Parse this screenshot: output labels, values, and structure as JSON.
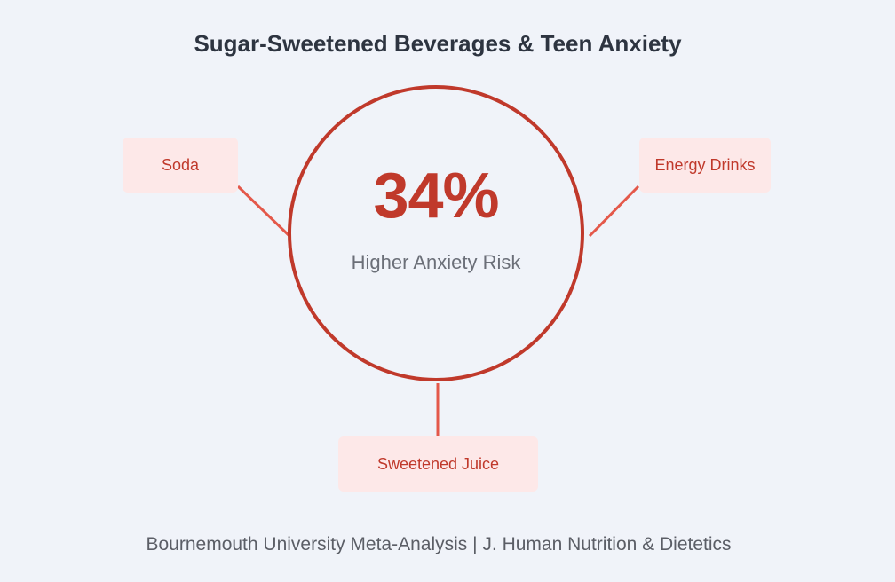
{
  "title": "Sugar-Sweetened Beverages & Teen Anxiety",
  "center": {
    "value": "34%",
    "label": "Higher Anxiety Risk"
  },
  "beverages": [
    {
      "label": "Soda"
    },
    {
      "label": "Energy Drinks"
    },
    {
      "label": "Sweetened Juice"
    }
  ],
  "footer": "Bournemouth University Meta-Analysis | J. Human Nutrition & Dietetics",
  "colors": {
    "accent": "#c0392b",
    "connector": "#e4584a",
    "box_fill": "#fde8e8",
    "background": "#f0f3f9"
  }
}
